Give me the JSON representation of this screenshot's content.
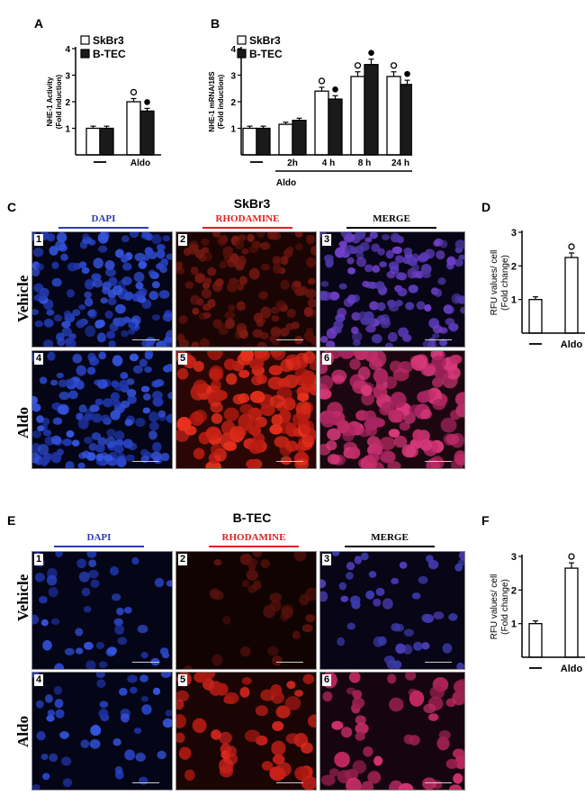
{
  "panel_labels": {
    "a": "A",
    "b": "B",
    "c": "C",
    "d": "D",
    "e": "E",
    "f": "F"
  },
  "sections": {
    "c_title": "SkBr3",
    "e_title": "B-TEC"
  },
  "stains": {
    "dapi": "DAPI",
    "rhodamine": "RHODAMINE",
    "merge": "MERGE"
  },
  "rows": {
    "vehicle": "Vehicle",
    "aldo": "Aldo"
  },
  "image_numbers": [
    "1",
    "2",
    "3",
    "4",
    "5",
    "6"
  ],
  "chart_data": [
    {
      "id": "A",
      "type": "bar",
      "ylabel": "NHE-1 Activity\n(Fold induction)",
      "ylim": [
        0,
        4
      ],
      "yticks": [
        1,
        2,
        3,
        4
      ],
      "categories": [
        "—",
        "Aldo"
      ],
      "series": [
        {
          "name": "SkBr3",
          "color": "#ffffff",
          "values": [
            1.0,
            2.0
          ]
        },
        {
          "name": "B-TEC",
          "color": "#1a1a1a",
          "values": [
            1.0,
            1.65
          ]
        }
      ],
      "markers": [
        {
          "category": "Aldo",
          "series": "SkBr3",
          "symbol": "°"
        },
        {
          "category": "Aldo",
          "series": "B-TEC",
          "symbol": "•"
        }
      ]
    },
    {
      "id": "B",
      "type": "bar",
      "ylabel": "NHE-1 mRNA/18S\n(Fold induction)",
      "ylim": [
        0,
        4
      ],
      "yticks": [
        1,
        2,
        3,
        4
      ],
      "categories": [
        "—",
        "2h",
        "4 h",
        "8 h",
        "24 h"
      ],
      "group_label": "Aldo",
      "series": [
        {
          "name": "SkBr3",
          "color": "#ffffff",
          "values": [
            1.0,
            1.15,
            2.4,
            2.95,
            2.95
          ]
        },
        {
          "name": "B-TEC",
          "color": "#1a1a1a",
          "values": [
            1.0,
            1.3,
            2.1,
            3.4,
            2.65
          ]
        }
      ],
      "markers": [
        {
          "category": "4 h",
          "series": "SkBr3",
          "symbol": "°"
        },
        {
          "category": "4 h",
          "series": "B-TEC",
          "symbol": "•"
        },
        {
          "category": "8 h",
          "series": "SkBr3",
          "symbol": "°"
        },
        {
          "category": "8 h",
          "series": "B-TEC",
          "symbol": "•"
        },
        {
          "category": "24 h",
          "series": "SkBr3",
          "symbol": "°"
        },
        {
          "category": "24 h",
          "series": "B-TEC",
          "symbol": "•"
        }
      ]
    },
    {
      "id": "D",
      "type": "bar",
      "ylabel": "RFU values/ cell\n(Fold change)",
      "ylim": [
        0,
        3
      ],
      "yticks": [
        1,
        2,
        3
      ],
      "categories": [
        "—",
        "Aldo"
      ],
      "series": [
        {
          "values": [
            1.0,
            2.25
          ]
        }
      ],
      "markers": [
        {
          "category": "Aldo",
          "symbol": "°"
        }
      ]
    },
    {
      "id": "F",
      "type": "bar",
      "ylabel": "RFU values/ cell\n(Fold change)",
      "ylim": [
        0,
        3
      ],
      "yticks": [
        1,
        2,
        3
      ],
      "categories": [
        "—",
        "Aldo"
      ],
      "series": [
        {
          "values": [
            1.0,
            2.65
          ]
        }
      ],
      "markers": [
        {
          "category": "Aldo",
          "symbol": "°"
        }
      ]
    }
  ]
}
